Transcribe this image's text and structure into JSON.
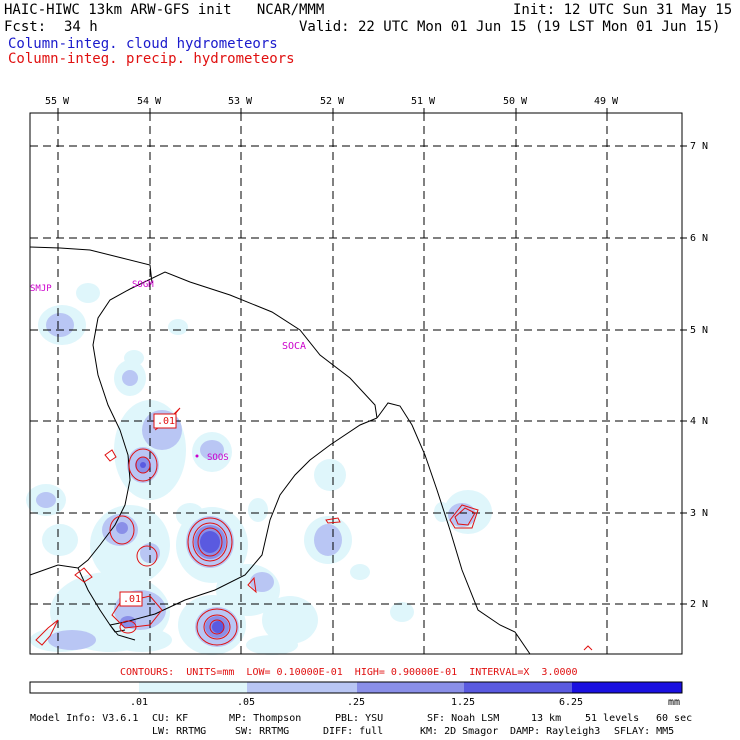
{
  "header": {
    "title_line": "HAIC-HIWC 13km ARW-GFS init   NCAR/MMM",
    "init": "Init: 12 UTC Sun 31 May 15",
    "fcst_label": "Fcst:",
    "fcst_value": "34 h",
    "valid": "Valid: 22 UTC Mon 01 Jun 15 (19 LST Mon 01 Jun 15)",
    "field1": "Column-integ. cloud hydrometeors",
    "field2": "Column-integ. precip. hydrometeors",
    "field1_color": "#1a1acc",
    "field2_color": "#e01010"
  },
  "map": {
    "lon_labels": [
      "55 W",
      "54 W",
      "53 W",
      "52 W",
      "51 W",
      "50 W",
      "49 W"
    ],
    "lat_labels": [
      "7 N",
      "6 N",
      "5 N",
      "4 N",
      "3 N",
      "2 N"
    ],
    "stations": [
      "SMJP",
      "SOGM",
      "SOCA",
      "SOOS"
    ],
    "contour_labels": [
      ".01",
      ".01"
    ],
    "station_color": "#cc00cc",
    "contour_color": "#e01010"
  },
  "contours_line": "CONTOURS:  UNITS=mm  LOW= 0.10000E-01  HIGH= 0.90000E-01  INTERVAL=X  3.0000",
  "colorbar": {
    "ticks": [
      ".01",
      ".05",
      ".25",
      "1.25",
      "6.25"
    ],
    "units": "mm",
    "colors": [
      "#ffffff",
      "#dff6fb",
      "#b9c6f4",
      "#8a8fe8",
      "#5a5ae0",
      "#1a10e0"
    ]
  },
  "model_info": {
    "line1": [
      "Model Info: V3.6.1",
      "CU: KF",
      "MP: Thompson",
      "PBL: YSU",
      "SF: Noah LSM",
      "13 km",
      "51 levels",
      "60 sec"
    ],
    "line2": [
      "LW: RRTMG",
      "SW: RRTMG",
      "DIFF: full",
      "KM: 2D Smagor",
      "DAMP: Rayleigh3",
      "SFLAY: MM5"
    ]
  }
}
